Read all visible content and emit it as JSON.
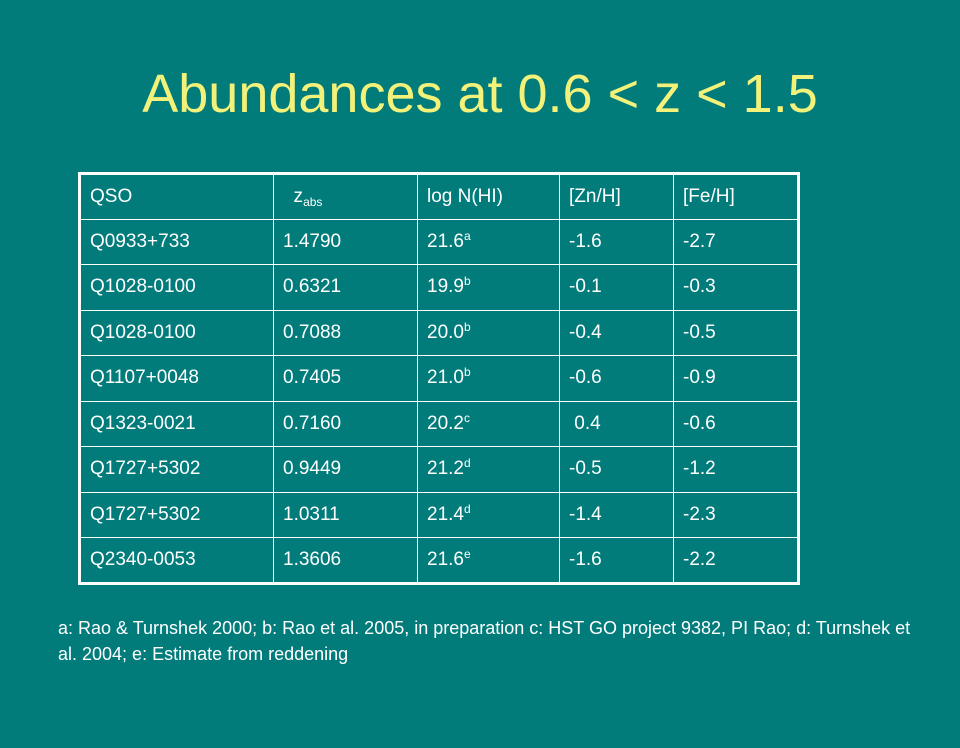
{
  "title": "Abundances at 0.6 < z < 1.5",
  "table": {
    "headers": [
      {
        "text": "QSO",
        "sub": ""
      },
      {
        "text": "  z",
        "sub": "abs"
      },
      {
        "text": "log N(HI)",
        "sub": ""
      },
      {
        "text": "[Zn/H]",
        "sub": ""
      },
      {
        "text": "[Fe/H]",
        "sub": ""
      }
    ],
    "rows": [
      {
        "qso": "Q0933+733",
        "zabs": "1.4790",
        "logn": "21.6",
        "ref": "a",
        "zn": "-1.6",
        "fe": "-2.7"
      },
      {
        "qso": "Q1028-0100",
        "zabs": "0.6321",
        "logn": "19.9",
        "ref": "b",
        "zn": "-0.1",
        "fe": "-0.3"
      },
      {
        "qso": "Q1028-0100",
        "zabs": "0.7088",
        "logn": "20.0",
        "ref": "b",
        "zn": "-0.4",
        "fe": "-0.5"
      },
      {
        "qso": "Q1107+0048",
        "zabs": "0.7405",
        "logn": "21.0",
        "ref": "b",
        "zn": "-0.6",
        "fe": "-0.9"
      },
      {
        "qso": "Q1323-0021",
        "zabs": "0.7160",
        "logn": "20.2",
        "ref": "c",
        "zn": " 0.4",
        "fe": "-0.6"
      },
      {
        "qso": "Q1727+5302",
        "zabs": "0.9449",
        "logn": "21.2",
        "ref": "d",
        "zn": "-0.5",
        "fe": "-1.2"
      },
      {
        "qso": "Q1727+5302",
        "zabs": "1.0311",
        "logn": "21.4",
        "ref": "d",
        "zn": "-1.4",
        "fe": "-2.3"
      },
      {
        "qso": "Q2340-0053",
        "zabs": "1.3606",
        "logn": "21.6",
        "ref": "e",
        "zn": "-1.6",
        "fe": "-2.2"
      }
    ]
  },
  "footnote": "a: Rao & Turnshek 2000; b: Rao et al. 2005, in preparation c: HST GO project 9382, PI Rao; d: Turnshek et al. 2004; e: Estimate from reddening",
  "colors": {
    "background": "#027b7b",
    "title": "#f2f27a",
    "text": "#ffffff"
  }
}
